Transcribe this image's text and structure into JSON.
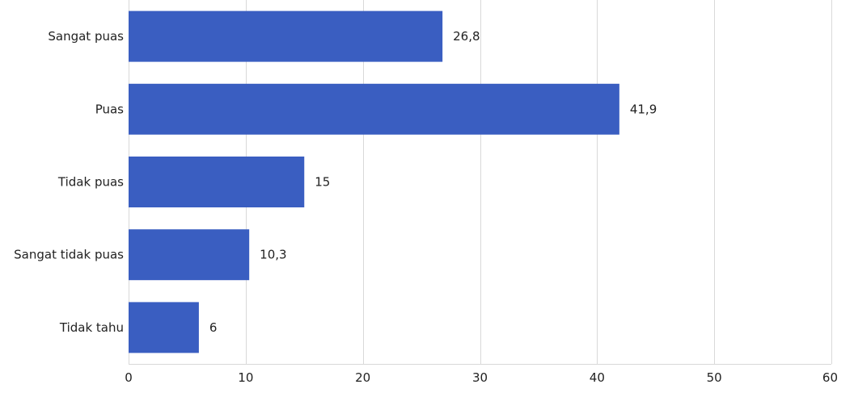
{
  "chart_data": {
    "type": "bar",
    "orientation": "horizontal",
    "categories": [
      "Sangat puas",
      "Puas",
      "Tidak puas",
      "Sangat tidak puas",
      "Tidak tahu"
    ],
    "values": [
      26.8,
      41.9,
      15,
      10.3,
      6
    ],
    "value_labels": [
      "26,8",
      "41,9",
      "15",
      "10,3",
      "6"
    ],
    "xlim": [
      0,
      60
    ],
    "xticks": [
      0,
      10,
      20,
      30,
      40,
      50,
      60
    ],
    "xtick_labels": [
      "0",
      "10",
      "20",
      "30",
      "40",
      "50",
      "60"
    ],
    "title": "",
    "xlabel": "",
    "ylabel": "",
    "grid": "vertical",
    "legend": "none",
    "bar_color": "#3a5ec1"
  }
}
